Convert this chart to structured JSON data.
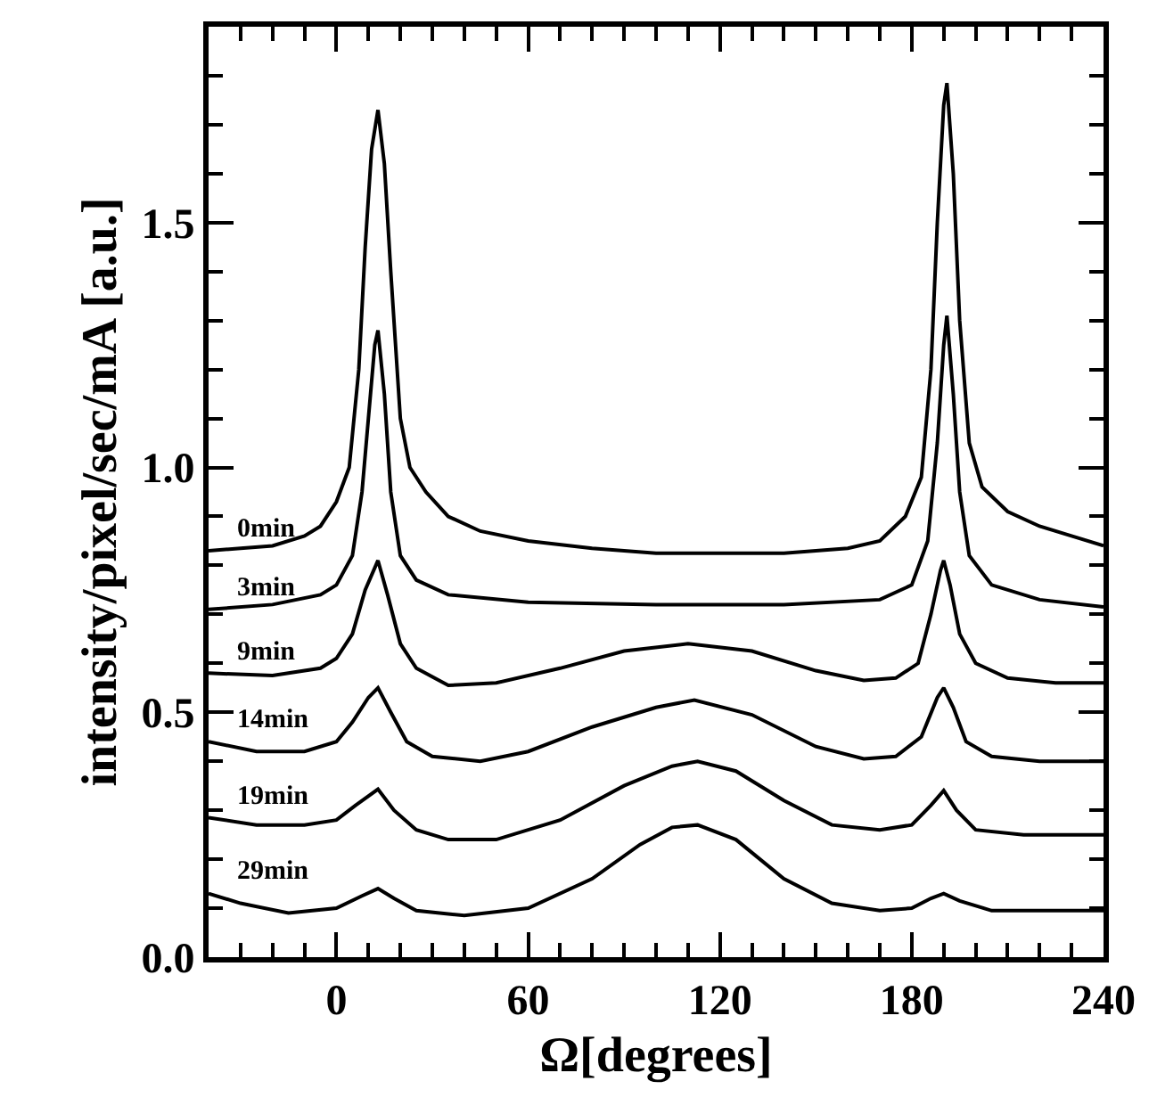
{
  "chart_data": {
    "type": "line",
    "xlabel": "Ω[degrees]",
    "ylabel": "intensity/pixel/sec/mA [a.u.]",
    "xlim": [
      -40,
      240
    ],
    "ylim": [
      0,
      1.9
    ],
    "xticks": [
      0,
      60,
      120,
      180,
      240,
      {
        "value": -30,
        "label": null
      },
      {
        "value": -20,
        "label": null
      },
      {
        "value": -10,
        "label": null
      },
      {
        "value": 10,
        "label": null
      },
      {
        "value": 20,
        "label": null
      },
      {
        "value": 30,
        "label": null
      },
      {
        "value": 40,
        "label": null
      },
      {
        "value": 50,
        "label": null
      },
      {
        "value": 70,
        "label": null
      },
      {
        "value": 80,
        "label": null
      },
      {
        "value": 90,
        "label": null
      },
      {
        "value": 100,
        "label": null
      },
      {
        "value": 110,
        "label": null
      },
      {
        "value": 130,
        "label": null
      },
      {
        "value": 140,
        "label": null
      },
      {
        "value": 150,
        "label": null
      },
      {
        "value": 160,
        "label": null
      },
      {
        "value": 170,
        "label": null
      },
      {
        "value": 190,
        "label": null
      },
      {
        "value": 200,
        "label": null
      },
      {
        "value": 210,
        "label": null
      },
      {
        "value": 220,
        "label": null
      },
      {
        "value": 230,
        "label": null
      }
    ],
    "yticks": [
      {
        "value": 0,
        "label": "0.0"
      },
      {
        "value": 0.5,
        "label": "0.5"
      },
      {
        "value": 1.0,
        "label": "1.0"
      },
      {
        "value": 1.5,
        "label": "1.5"
      },
      {
        "value": 0.1,
        "label": null
      },
      {
        "value": 0.2,
        "label": null
      },
      {
        "value": 0.3,
        "label": null
      },
      {
        "value": 0.4,
        "label": null
      },
      {
        "value": 0.6,
        "label": null
      },
      {
        "value": 0.7,
        "label": null
      },
      {
        "value": 0.8,
        "label": null
      },
      {
        "value": 0.9,
        "label": null
      },
      {
        "value": 1.1,
        "label": null
      },
      {
        "value": 1.2,
        "label": null
      },
      {
        "value": 1.3,
        "label": null
      },
      {
        "value": 1.4,
        "label": null
      },
      {
        "value": 1.6,
        "label": null
      },
      {
        "value": 1.7,
        "label": null
      },
      {
        "value": 1.8,
        "label": null
      }
    ],
    "legend": false,
    "marker": "none",
    "line_style": "solid",
    "series": [
      {
        "name": "0min",
        "color": "#000000",
        "x": [
          -40,
          -30,
          -20,
          -10,
          -5,
          0,
          4,
          7,
          9,
          11,
          13,
          15,
          17,
          20,
          23,
          28,
          35,
          45,
          60,
          80,
          100,
          120,
          140,
          160,
          170,
          178,
          183,
          186,
          188,
          190,
          191,
          193,
          195,
          198,
          202,
          210,
          220,
          230,
          240
        ],
        "values": [
          0.83,
          0.835,
          0.84,
          0.86,
          0.88,
          0.93,
          1.0,
          1.2,
          1.45,
          1.65,
          1.73,
          1.62,
          1.4,
          1.1,
          1.0,
          0.95,
          0.9,
          0.87,
          0.85,
          0.835,
          0.825,
          0.825,
          0.825,
          0.835,
          0.85,
          0.9,
          0.98,
          1.2,
          1.5,
          1.74,
          1.785,
          1.6,
          1.3,
          1.05,
          0.96,
          0.91,
          0.88,
          0.86,
          0.84
        ]
      },
      {
        "name": "3min",
        "color": "#000000",
        "x": [
          -40,
          -20,
          -5,
          0,
          5,
          8,
          10,
          12,
          13,
          15,
          17,
          20,
          25,
          35,
          60,
          100,
          140,
          170,
          180,
          185,
          188,
          190,
          191,
          193,
          195,
          198,
          205,
          220,
          240
        ],
        "values": [
          0.71,
          0.72,
          0.74,
          0.76,
          0.82,
          0.95,
          1.1,
          1.25,
          1.28,
          1.15,
          0.95,
          0.82,
          0.77,
          0.74,
          0.725,
          0.72,
          0.72,
          0.73,
          0.76,
          0.85,
          1.05,
          1.25,
          1.31,
          1.15,
          0.95,
          0.82,
          0.76,
          0.73,
          0.715
        ]
      },
      {
        "name": "9min",
        "color": "#000000",
        "x": [
          -40,
          -20,
          -5,
          0,
          5,
          9,
          13,
          16,
          20,
          25,
          35,
          50,
          70,
          90,
          110,
          130,
          150,
          165,
          175,
          182,
          186,
          189,
          190,
          192,
          195,
          200,
          210,
          225,
          240
        ],
        "values": [
          0.58,
          0.575,
          0.59,
          0.61,
          0.66,
          0.75,
          0.81,
          0.74,
          0.64,
          0.59,
          0.555,
          0.56,
          0.59,
          0.625,
          0.64,
          0.625,
          0.585,
          0.565,
          0.57,
          0.6,
          0.7,
          0.79,
          0.81,
          0.76,
          0.66,
          0.6,
          0.57,
          0.56,
          0.56
        ]
      },
      {
        "name": "14min",
        "color": "#000000",
        "x": [
          -40,
          -25,
          -10,
          0,
          5,
          10,
          13,
          17,
          22,
          30,
          45,
          60,
          80,
          100,
          112,
          130,
          150,
          165,
          175,
          183,
          188,
          190,
          193,
          197,
          205,
          220,
          240
        ],
        "values": [
          0.44,
          0.42,
          0.42,
          0.44,
          0.48,
          0.53,
          0.55,
          0.5,
          0.44,
          0.41,
          0.4,
          0.42,
          0.47,
          0.51,
          0.525,
          0.495,
          0.43,
          0.405,
          0.41,
          0.45,
          0.53,
          0.55,
          0.51,
          0.44,
          0.41,
          0.4,
          0.4
        ]
      },
      {
        "name": "19min",
        "color": "#000000",
        "x": [
          -40,
          -25,
          -10,
          0,
          6,
          13,
          18,
          25,
          35,
          50,
          70,
          90,
          105,
          113,
          125,
          140,
          155,
          170,
          180,
          186,
          190,
          194,
          200,
          215,
          240
        ],
        "values": [
          0.285,
          0.27,
          0.27,
          0.28,
          0.31,
          0.343,
          0.3,
          0.26,
          0.24,
          0.24,
          0.28,
          0.35,
          0.39,
          0.4,
          0.38,
          0.32,
          0.27,
          0.26,
          0.27,
          0.31,
          0.34,
          0.3,
          0.26,
          0.25,
          0.25
        ]
      },
      {
        "name": "29min",
        "color": "#000000",
        "x": [
          -40,
          -30,
          -15,
          0,
          8,
          13,
          18,
          25,
          40,
          60,
          80,
          95,
          105,
          113,
          125,
          140,
          155,
          170,
          180,
          186,
          190,
          195,
          205,
          240
        ],
        "values": [
          0.13,
          0.11,
          0.09,
          0.1,
          0.125,
          0.14,
          0.12,
          0.095,
          0.085,
          0.1,
          0.16,
          0.23,
          0.265,
          0.27,
          0.24,
          0.16,
          0.11,
          0.095,
          0.1,
          0.12,
          0.13,
          0.115,
          0.095,
          0.095
        ]
      }
    ]
  }
}
